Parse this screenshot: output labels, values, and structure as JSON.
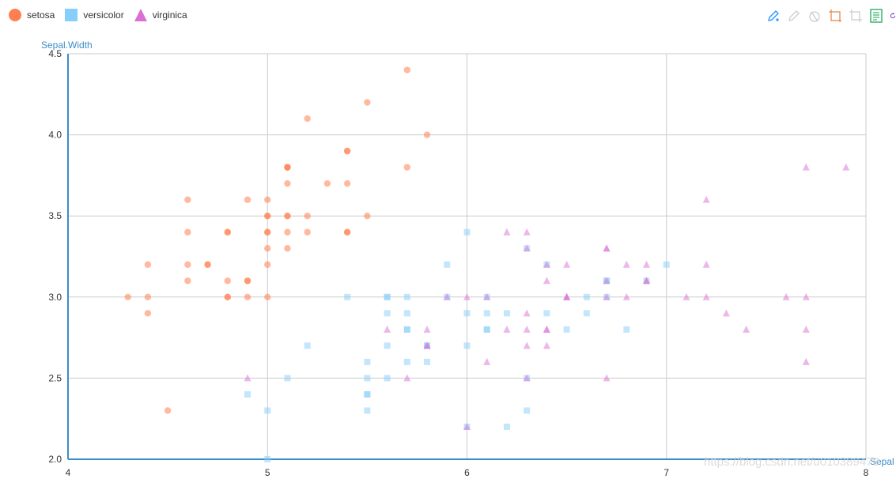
{
  "legend": {
    "items": [
      {
        "label": "setosa",
        "color": "#ff7f50",
        "icon": "circle-icon"
      },
      {
        "label": "versicolor",
        "color": "#87cefa",
        "icon": "square-icon"
      },
      {
        "label": "virginica",
        "color": "#da70d6",
        "icon": "triangle-icon"
      }
    ]
  },
  "toolbox": {
    "icons": [
      "mark-pen-icon",
      "mark-undo-icon",
      "mark-clear-icon",
      "data-zoom-icon",
      "data-zoom-reset-icon",
      "data-view-icon",
      "restore-icon"
    ]
  },
  "watermark": "https://blog.csdn.net/u010389478",
  "chart_data": {
    "type": "scatter",
    "xlabel": "Sepal",
    "ylabel": "Sepal.Width",
    "xlim": [
      4,
      8
    ],
    "ylim": [
      2.0,
      4.5
    ],
    "x_ticks": [
      "4",
      "5",
      "6",
      "7",
      "8"
    ],
    "y_ticks": [
      "2.0",
      "2.5",
      "3.0",
      "3.5",
      "4.0",
      "4.5"
    ],
    "grid": true,
    "legend_position": "top-left",
    "series": [
      {
        "name": "setosa",
        "color": "#ff7f50",
        "symbol": "circle",
        "points": [
          [
            5.1,
            3.5
          ],
          [
            4.9,
            3.0
          ],
          [
            4.7,
            3.2
          ],
          [
            4.6,
            3.1
          ],
          [
            5.0,
            3.6
          ],
          [
            5.4,
            3.9
          ],
          [
            4.6,
            3.4
          ],
          [
            5.0,
            3.4
          ],
          [
            4.4,
            2.9
          ],
          [
            4.9,
            3.1
          ],
          [
            5.4,
            3.7
          ],
          [
            4.8,
            3.4
          ],
          [
            4.8,
            3.0
          ],
          [
            4.3,
            3.0
          ],
          [
            5.8,
            4.0
          ],
          [
            5.7,
            4.4
          ],
          [
            5.4,
            3.9
          ],
          [
            5.1,
            3.5
          ],
          [
            5.7,
            3.8
          ],
          [
            5.1,
            3.8
          ],
          [
            5.4,
            3.4
          ],
          [
            5.1,
            3.7
          ],
          [
            4.6,
            3.6
          ],
          [
            5.1,
            3.3
          ],
          [
            4.8,
            3.4
          ],
          [
            5.0,
            3.0
          ],
          [
            5.0,
            3.4
          ],
          [
            5.2,
            3.5
          ],
          [
            5.2,
            3.4
          ],
          [
            4.7,
            3.2
          ],
          [
            4.8,
            3.1
          ],
          [
            5.4,
            3.4
          ],
          [
            5.2,
            4.1
          ],
          [
            5.5,
            4.2
          ],
          [
            4.9,
            3.1
          ],
          [
            5.0,
            3.2
          ],
          [
            5.5,
            3.5
          ],
          [
            4.9,
            3.6
          ],
          [
            4.4,
            3.0
          ],
          [
            5.1,
            3.4
          ],
          [
            5.0,
            3.5
          ],
          [
            4.5,
            2.3
          ],
          [
            4.4,
            3.2
          ],
          [
            5.0,
            3.5
          ],
          [
            5.1,
            3.8
          ],
          [
            4.8,
            3.0
          ],
          [
            5.1,
            3.8
          ],
          [
            4.6,
            3.2
          ],
          [
            5.3,
            3.7
          ],
          [
            5.0,
            3.3
          ]
        ]
      },
      {
        "name": "versicolor",
        "color": "#87cefa",
        "symbol": "square",
        "points": [
          [
            7.0,
            3.2
          ],
          [
            6.4,
            3.2
          ],
          [
            6.9,
            3.1
          ],
          [
            5.5,
            2.3
          ],
          [
            6.5,
            2.8
          ],
          [
            5.7,
            2.8
          ],
          [
            6.3,
            3.3
          ],
          [
            4.9,
            2.4
          ],
          [
            6.6,
            2.9
          ],
          [
            5.2,
            2.7
          ],
          [
            5.0,
            2.0
          ],
          [
            5.9,
            3.0
          ],
          [
            6.0,
            2.2
          ],
          [
            6.1,
            2.9
          ],
          [
            5.6,
            2.9
          ],
          [
            6.7,
            3.1
          ],
          [
            5.6,
            3.0
          ],
          [
            5.8,
            2.7
          ],
          [
            6.2,
            2.2
          ],
          [
            5.6,
            2.5
          ],
          [
            5.9,
            3.2
          ],
          [
            6.1,
            2.8
          ],
          [
            6.3,
            2.5
          ],
          [
            6.1,
            2.8
          ],
          [
            6.4,
            2.9
          ],
          [
            6.6,
            3.0
          ],
          [
            6.8,
            2.8
          ],
          [
            6.7,
            3.0
          ],
          [
            6.0,
            2.9
          ],
          [
            5.7,
            2.6
          ],
          [
            5.5,
            2.4
          ],
          [
            5.5,
            2.4
          ],
          [
            5.8,
            2.7
          ],
          [
            6.0,
            2.7
          ],
          [
            5.4,
            3.0
          ],
          [
            6.0,
            3.4
          ],
          [
            6.7,
            3.1
          ],
          [
            6.3,
            2.3
          ],
          [
            5.6,
            3.0
          ],
          [
            5.5,
            2.5
          ],
          [
            5.5,
            2.6
          ],
          [
            6.1,
            3.0
          ],
          [
            5.8,
            2.6
          ],
          [
            5.0,
            2.3
          ],
          [
            5.6,
            2.7
          ],
          [
            5.7,
            3.0
          ],
          [
            5.7,
            2.9
          ],
          [
            6.2,
            2.9
          ],
          [
            5.1,
            2.5
          ],
          [
            5.7,
            2.8
          ]
        ]
      },
      {
        "name": "virginica",
        "color": "#da70d6",
        "symbol": "triangle",
        "points": [
          [
            6.3,
            3.3
          ],
          [
            5.8,
            2.7
          ],
          [
            7.1,
            3.0
          ],
          [
            6.3,
            2.9
          ],
          [
            6.5,
            3.0
          ],
          [
            7.6,
            3.0
          ],
          [
            4.9,
            2.5
          ],
          [
            7.3,
            2.9
          ],
          [
            6.7,
            2.5
          ],
          [
            7.2,
            3.6
          ],
          [
            6.5,
            3.2
          ],
          [
            6.4,
            2.7
          ],
          [
            6.8,
            3.0
          ],
          [
            5.7,
            2.5
          ],
          [
            5.8,
            2.8
          ],
          [
            6.4,
            3.2
          ],
          [
            6.5,
            3.0
          ],
          [
            7.7,
            3.8
          ],
          [
            7.7,
            2.6
          ],
          [
            6.0,
            2.2
          ],
          [
            6.9,
            3.2
          ],
          [
            5.6,
            2.8
          ],
          [
            7.7,
            2.8
          ],
          [
            6.3,
            2.7
          ],
          [
            6.7,
            3.3
          ],
          [
            7.2,
            3.2
          ],
          [
            6.2,
            2.8
          ],
          [
            6.1,
            3.0
          ],
          [
            6.4,
            2.8
          ],
          [
            7.2,
            3.0
          ],
          [
            7.4,
            2.8
          ],
          [
            7.9,
            3.8
          ],
          [
            6.4,
            2.8
          ],
          [
            6.3,
            2.8
          ],
          [
            6.1,
            2.6
          ],
          [
            7.7,
            3.0
          ],
          [
            6.3,
            3.4
          ],
          [
            6.4,
            3.1
          ],
          [
            6.0,
            3.0
          ],
          [
            6.9,
            3.1
          ],
          [
            6.7,
            3.1
          ],
          [
            6.9,
            3.1
          ],
          [
            5.8,
            2.7
          ],
          [
            6.8,
            3.2
          ],
          [
            6.7,
            3.3
          ],
          [
            6.7,
            3.0
          ],
          [
            6.3,
            2.5
          ],
          [
            6.5,
            3.0
          ],
          [
            6.2,
            3.4
          ],
          [
            5.9,
            3.0
          ]
        ]
      }
    ]
  }
}
